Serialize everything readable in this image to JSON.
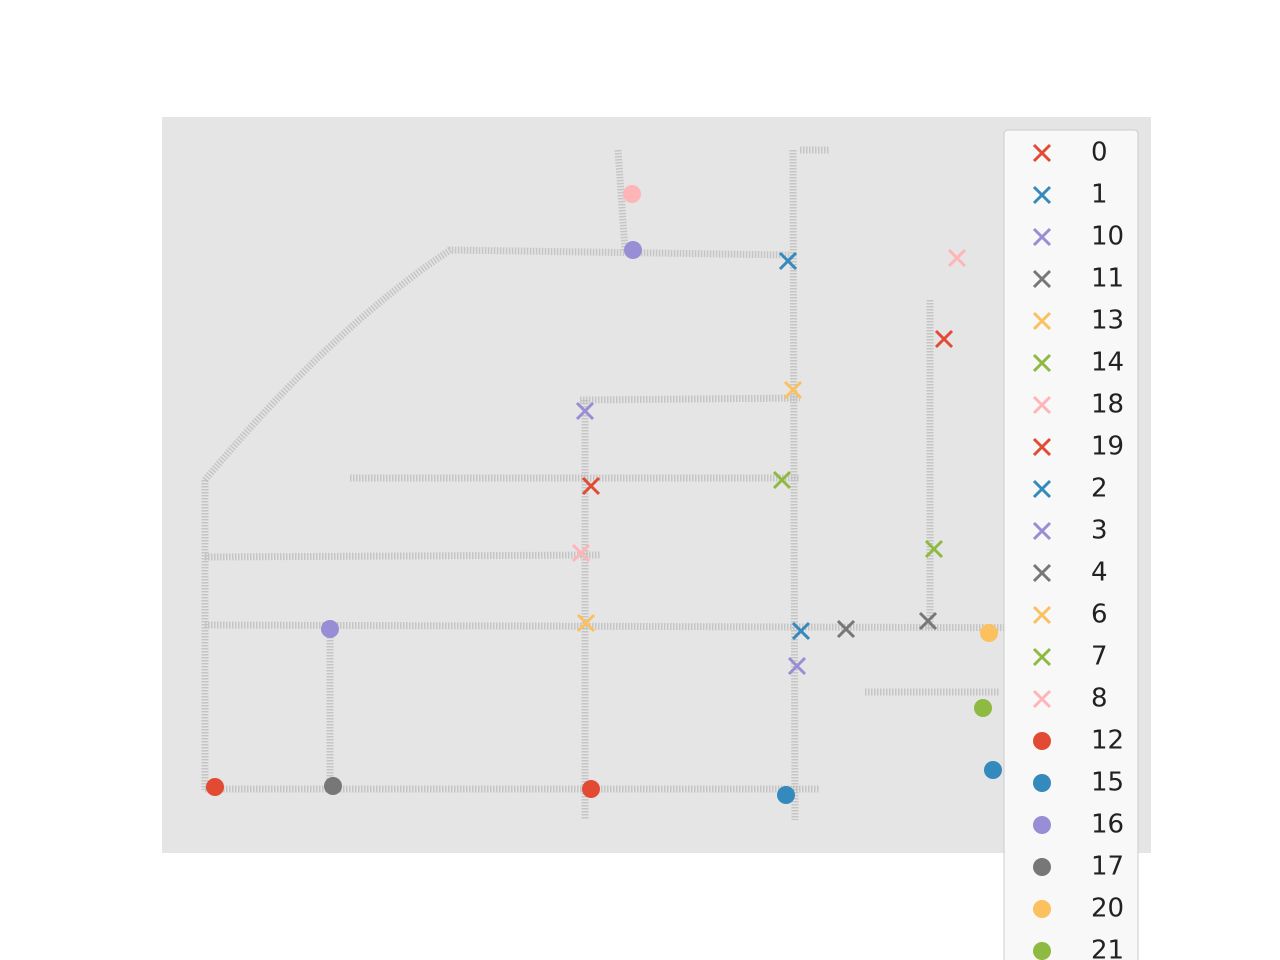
{
  "chart_data": {
    "type": "scatter",
    "xlim": [
      0,
      989
    ],
    "ylim": [
      0,
      736
    ],
    "legend": "upper right",
    "series": [
      {
        "name": "0",
        "color": "#E24A33",
        "marker": "x",
        "x": [
          782
        ],
        "y": [
          514
        ]
      },
      {
        "name": "1",
        "color": "#348ABD",
        "marker": "x",
        "x": [
          626
        ],
        "y": [
          592
        ]
      },
      {
        "name": "10",
        "color": "#988ED5",
        "marker": "x",
        "x": [
          423
        ],
        "y": [
          442
        ]
      },
      {
        "name": "11",
        "color": "#777777",
        "marker": "x",
        "x": [
          684
        ],
        "y": [
          224
        ]
      },
      {
        "name": "13",
        "color": "#FBC15E",
        "marker": "x",
        "x": [
          631
        ],
        "y": [
          463
        ]
      },
      {
        "name": "14",
        "color": "#8EBA42",
        "marker": "x",
        "x": [
          620
        ],
        "y": [
          373
        ]
      },
      {
        "name": "18",
        "color": "#FFB5B8",
        "marker": "x",
        "x": [
          795
        ],
        "y": [
          595
        ]
      },
      {
        "name": "19",
        "color": "#E24A33",
        "marker": "x",
        "x": [
          429
        ],
        "y": [
          367
        ]
      },
      {
        "name": "2",
        "color": "#348ABD",
        "marker": "x",
        "x": [
          639
        ],
        "y": [
          222
        ]
      },
      {
        "name": "3",
        "color": "#988ED5",
        "marker": "x",
        "x": [
          635
        ],
        "y": [
          187
        ]
      },
      {
        "name": "4",
        "color": "#777777",
        "marker": "x",
        "x": [
          766
        ],
        "y": [
          232
        ]
      },
      {
        "name": "6",
        "color": "#FBC15E",
        "marker": "x",
        "x": [
          424
        ],
        "y": [
          230
        ]
      },
      {
        "name": "7",
        "color": "#8EBA42",
        "marker": "x",
        "x": [
          772
        ],
        "y": [
          304
        ]
      },
      {
        "name": "8",
        "color": "#FFB5B8",
        "marker": "x",
        "x": [
          419
        ],
        "y": [
          300
        ]
      },
      {
        "name": "12",
        "color": "#E24A33",
        "marker": "o",
        "x": [
          53,
          429
        ],
        "y": [
          66,
          64
        ]
      },
      {
        "name": "15",
        "color": "#348ABD",
        "marker": "o",
        "x": [
          624,
          831
        ],
        "y": [
          58,
          83
        ]
      },
      {
        "name": "16",
        "color": "#988ED5",
        "marker": "o",
        "x": [
          471,
          168
        ],
        "y": [
          603,
          224
        ]
      },
      {
        "name": "17",
        "color": "#777777",
        "marker": "o",
        "x": [
          171
        ],
        "y": [
          67
        ]
      },
      {
        "name": "20",
        "color": "#FBC15E",
        "marker": "o",
        "x": [
          827
        ],
        "y": [
          220
        ]
      },
      {
        "name": "21",
        "color": "#8EBA42",
        "marker": "o",
        "x": [
          821
        ],
        "y": [
          145
        ]
      },
      {
        "color": "#FFB5B8",
        "marker": "o",
        "x": [
          470
        ],
        "y": [
          659
        ]
      }
    ]
  }
}
